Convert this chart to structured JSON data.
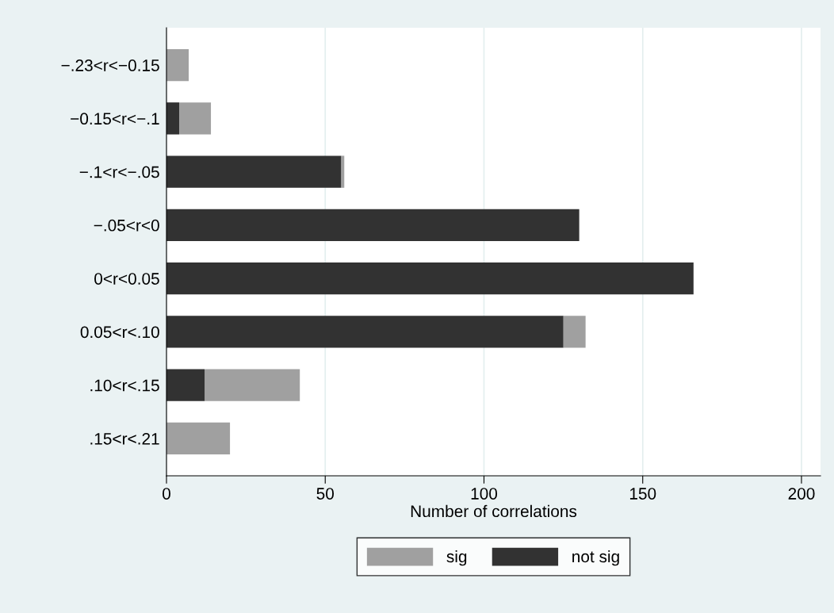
{
  "chart_data": {
    "type": "bar",
    "orientation": "horizontal",
    "stacked": true,
    "xlabel": "Number of correlations",
    "categories": [
      "−.23<r<−0.15",
      "−0.15<r<−.1",
      "−.1<r<−.05",
      "−.05<r<0",
      "0<r<0.05",
      "0.05<r<.10",
      ".10<r<.15",
      ".15<r<.21"
    ],
    "series": [
      {
        "name": "not sig",
        "color": "#323232",
        "values": [
          0,
          4,
          55,
          130,
          166,
          125,
          12,
          0
        ]
      },
      {
        "name": "sig",
        "color": "#a0a0a0",
        "values": [
          7,
          10,
          1,
          0,
          0,
          7,
          30,
          20
        ]
      }
    ],
    "xlim": [
      0,
      206
    ],
    "xticks": [
      0,
      50,
      100,
      150,
      200
    ],
    "grid": "x",
    "legend": "bottom"
  }
}
